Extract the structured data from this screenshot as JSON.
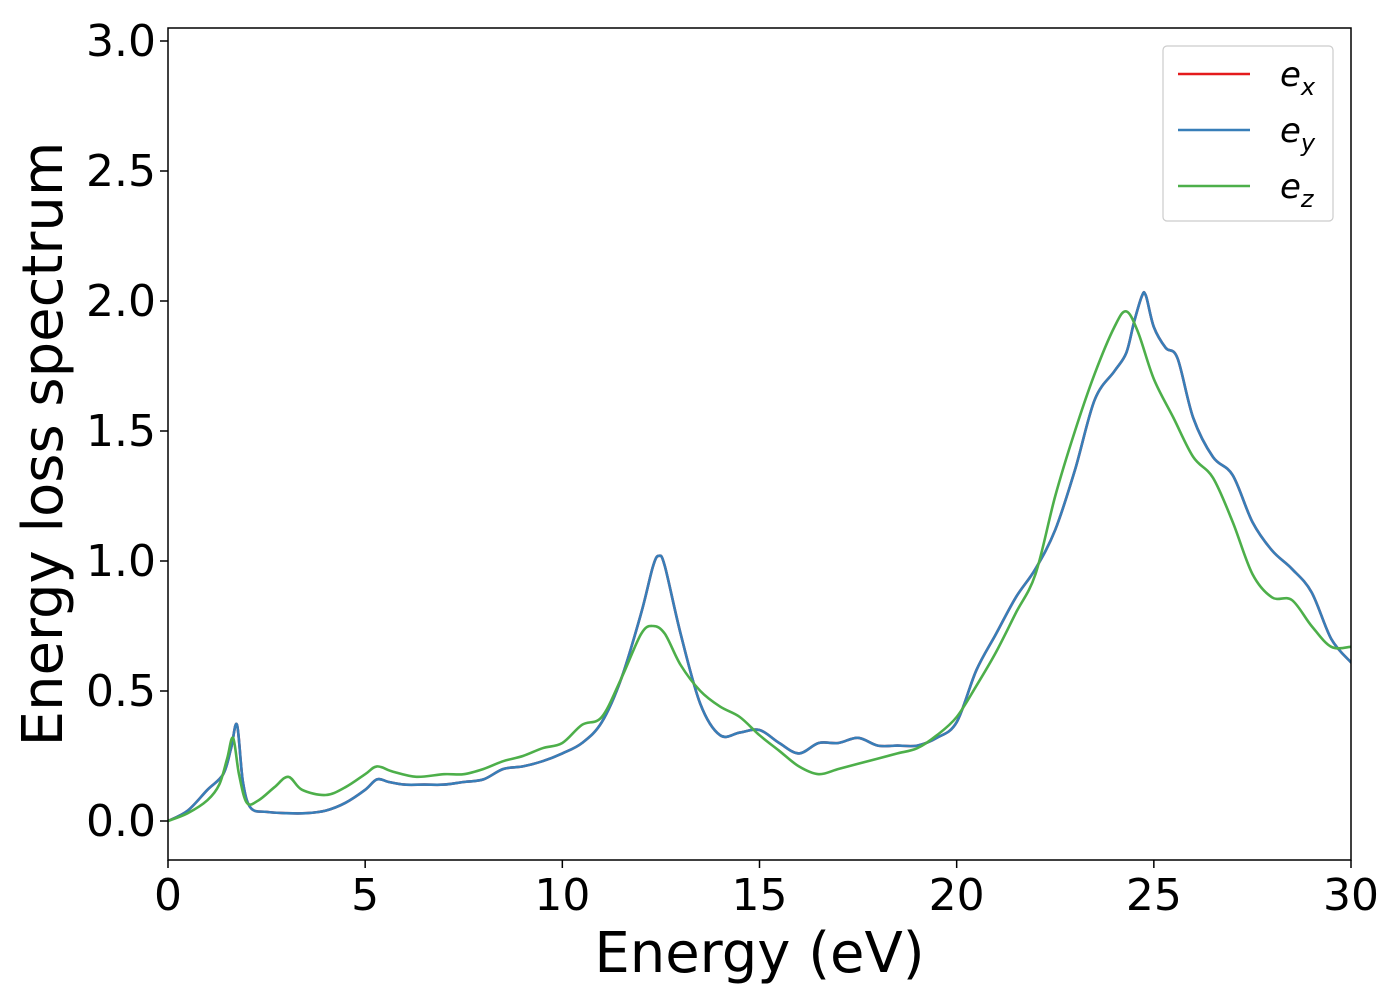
{
  "chart_data": {
    "type": "line",
    "xlabel": "Energy (eV)",
    "ylabel": "Energy loss spectrum",
    "xlim": [
      0,
      30
    ],
    "ylim": [
      -0.15,
      3.05
    ],
    "xticks": [
      0,
      5,
      10,
      15,
      20,
      25,
      30
    ],
    "xtick_labels": [
      "0",
      "5",
      "10",
      "15",
      "20",
      "25",
      "30"
    ],
    "yticks": [
      0.0,
      0.5,
      1.0,
      1.5,
      2.0,
      2.5,
      3.0
    ],
    "ytick_labels": [
      "0.0",
      "0.5",
      "1.0",
      "1.5",
      "2.0",
      "2.5",
      "3.0"
    ],
    "grid": false,
    "legend_position": "top-right",
    "series": [
      {
        "name": "e",
        "sub": "x",
        "color": "#e41a1c",
        "x": [
          0,
          0.5,
          1.0,
          1.4,
          1.6,
          1.75,
          1.9,
          2.1,
          2.5,
          3.0,
          3.5,
          4.0,
          4.5,
          5.0,
          5.3,
          5.6,
          6.0,
          6.5,
          7.0,
          7.5,
          8.0,
          8.5,
          9.0,
          9.5,
          10.0,
          10.5,
          11.0,
          11.5,
          12.0,
          12.3,
          12.45,
          12.6,
          13.0,
          13.5,
          14.0,
          14.5,
          15.0,
          15.5,
          16.0,
          16.5,
          17.0,
          17.5,
          18.0,
          18.5,
          19.0,
          19.5,
          20.0,
          20.5,
          21.0,
          21.5,
          22.0,
          22.5,
          23.0,
          23.5,
          24.0,
          24.3,
          24.5,
          24.7,
          24.8,
          25.0,
          25.3,
          25.6,
          26.0,
          26.5,
          27.0,
          27.5,
          28.0,
          28.5,
          29.0,
          29.5,
          30.0
        ],
        "y": [
          0.0,
          0.04,
          0.12,
          0.18,
          0.28,
          0.37,
          0.15,
          0.05,
          0.035,
          0.03,
          0.03,
          0.04,
          0.07,
          0.12,
          0.16,
          0.15,
          0.14,
          0.14,
          0.14,
          0.15,
          0.16,
          0.2,
          0.21,
          0.23,
          0.26,
          0.3,
          0.38,
          0.55,
          0.8,
          0.98,
          1.02,
          0.98,
          0.72,
          0.45,
          0.33,
          0.34,
          0.35,
          0.3,
          0.26,
          0.3,
          0.3,
          0.32,
          0.29,
          0.29,
          0.29,
          0.32,
          0.38,
          0.58,
          0.72,
          0.86,
          0.97,
          1.12,
          1.35,
          1.62,
          1.73,
          1.8,
          1.92,
          2.02,
          2.02,
          1.9,
          1.82,
          1.78,
          1.55,
          1.4,
          1.33,
          1.15,
          1.04,
          0.97,
          0.88,
          0.7,
          0.61
        ]
      },
      {
        "name": "e",
        "sub": "y",
        "color": "#377eb8",
        "x": [
          0,
          0.5,
          1.0,
          1.4,
          1.6,
          1.75,
          1.9,
          2.1,
          2.5,
          3.0,
          3.5,
          4.0,
          4.5,
          5.0,
          5.3,
          5.6,
          6.0,
          6.5,
          7.0,
          7.5,
          8.0,
          8.5,
          9.0,
          9.5,
          10.0,
          10.5,
          11.0,
          11.5,
          12.0,
          12.3,
          12.45,
          12.6,
          13.0,
          13.5,
          14.0,
          14.5,
          15.0,
          15.5,
          16.0,
          16.5,
          17.0,
          17.5,
          18.0,
          18.5,
          19.0,
          19.5,
          20.0,
          20.5,
          21.0,
          21.5,
          22.0,
          22.5,
          23.0,
          23.5,
          24.0,
          24.3,
          24.5,
          24.7,
          24.8,
          25.0,
          25.3,
          25.6,
          26.0,
          26.5,
          27.0,
          27.5,
          28.0,
          28.5,
          29.0,
          29.5,
          30.0
        ],
        "y": [
          0.0,
          0.04,
          0.12,
          0.18,
          0.28,
          0.37,
          0.15,
          0.05,
          0.035,
          0.03,
          0.03,
          0.04,
          0.07,
          0.12,
          0.16,
          0.15,
          0.14,
          0.14,
          0.14,
          0.15,
          0.16,
          0.2,
          0.21,
          0.23,
          0.26,
          0.3,
          0.38,
          0.55,
          0.8,
          0.98,
          1.02,
          0.98,
          0.72,
          0.45,
          0.33,
          0.34,
          0.35,
          0.3,
          0.26,
          0.3,
          0.3,
          0.32,
          0.29,
          0.29,
          0.29,
          0.32,
          0.38,
          0.58,
          0.72,
          0.86,
          0.97,
          1.12,
          1.35,
          1.62,
          1.73,
          1.8,
          1.92,
          2.02,
          2.02,
          1.9,
          1.82,
          1.78,
          1.55,
          1.4,
          1.33,
          1.15,
          1.04,
          0.97,
          0.88,
          0.7,
          0.61
        ]
      },
      {
        "name": "e",
        "sub": "z",
        "color": "#4daf4a",
        "x": [
          0,
          0.5,
          1.0,
          1.3,
          1.5,
          1.65,
          1.8,
          2.0,
          2.3,
          2.7,
          3.05,
          3.4,
          4.0,
          4.5,
          5.0,
          5.3,
          5.7,
          6.3,
          7.0,
          7.5,
          8.0,
          8.5,
          9.0,
          9.5,
          10.0,
          10.5,
          11.0,
          11.5,
          12.0,
          12.3,
          12.6,
          13.0,
          13.5,
          14.0,
          14.5,
          15.0,
          15.5,
          16.0,
          16.5,
          17.0,
          17.5,
          18.0,
          18.5,
          19.0,
          19.5,
          20.0,
          20.5,
          21.0,
          21.5,
          22.0,
          22.5,
          23.0,
          23.5,
          24.0,
          24.3,
          24.6,
          25.0,
          25.5,
          26.0,
          26.5,
          27.0,
          27.5,
          28.0,
          28.5,
          29.0,
          29.5,
          30.0
        ],
        "y": [
          0.0,
          0.03,
          0.08,
          0.14,
          0.24,
          0.32,
          0.18,
          0.07,
          0.08,
          0.13,
          0.17,
          0.12,
          0.1,
          0.13,
          0.18,
          0.21,
          0.19,
          0.17,
          0.18,
          0.18,
          0.2,
          0.23,
          0.25,
          0.28,
          0.3,
          0.37,
          0.4,
          0.55,
          0.72,
          0.75,
          0.72,
          0.6,
          0.5,
          0.44,
          0.4,
          0.33,
          0.27,
          0.21,
          0.18,
          0.2,
          0.22,
          0.24,
          0.26,
          0.28,
          0.33,
          0.4,
          0.52,
          0.65,
          0.8,
          0.95,
          1.25,
          1.5,
          1.72,
          1.9,
          1.96,
          1.88,
          1.7,
          1.55,
          1.4,
          1.32,
          1.15,
          0.95,
          0.86,
          0.85,
          0.75,
          0.67,
          0.67
        ]
      }
    ]
  }
}
